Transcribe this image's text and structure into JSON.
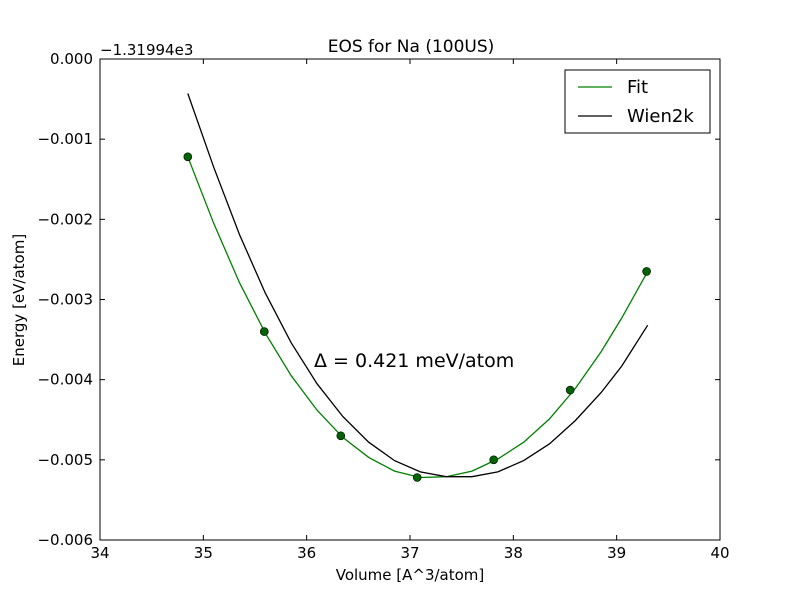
{
  "chart_data": {
    "type": "line",
    "title": "EOS for Na (100US)",
    "xlabel": "Volume [A^3/atom]",
    "ylabel": "Energy [eV/atom]",
    "y_offset_label": "−1.31994e3",
    "xlim": [
      34,
      40
    ],
    "ylim": [
      -0.006,
      0.0
    ],
    "xticks": [
      34,
      35,
      36,
      37,
      38,
      39,
      40
    ],
    "xtick_labels": [
      "34",
      "35",
      "36",
      "37",
      "38",
      "39",
      "40"
    ],
    "yticks": [
      0.0,
      -0.001,
      -0.002,
      -0.003,
      -0.004,
      -0.005,
      -0.006
    ],
    "ytick_labels": [
      "0.000",
      "−0.001",
      "−0.002",
      "−0.003",
      "−0.004",
      "−0.005",
      "−0.006"
    ],
    "legend_position": "top-right",
    "grid": false,
    "annotation": "Δ = 0.421 meV/atom",
    "series": [
      {
        "name": "Fit",
        "color": "#008000",
        "style": "line",
        "x": [
          34.85,
          35.1,
          35.35,
          35.6,
          35.85,
          36.1,
          36.35,
          36.6,
          36.85,
          37.1,
          37.35,
          37.6,
          37.85,
          38.1,
          38.35,
          38.6,
          38.85,
          39.05,
          39.3
        ],
        "y": [
          -0.00122,
          -0.00205,
          -0.00279,
          -0.00342,
          -0.00395,
          -0.00438,
          -0.00472,
          -0.00497,
          -0.00514,
          -0.00522,
          -0.00521,
          -0.00514,
          -0.00499,
          -0.00478,
          -0.00449,
          -0.00411,
          -0.00365,
          -0.00323,
          -0.00265
        ]
      },
      {
        "name": "",
        "color": "#006400",
        "style": "points",
        "x": [
          34.85,
          35.59,
          36.33,
          37.07,
          37.81,
          38.55,
          39.29
        ],
        "y": [
          -0.00122,
          -0.0034,
          -0.0047,
          -0.00522,
          -0.005,
          -0.00413,
          -0.00265
        ]
      },
      {
        "name": "Wien2k",
        "color": "#000000",
        "style": "line",
        "x": [
          34.85,
          35.1,
          35.35,
          35.6,
          35.85,
          36.1,
          36.35,
          36.6,
          36.85,
          37.1,
          37.35,
          37.6,
          37.85,
          38.1,
          38.35,
          38.6,
          38.85,
          39.05,
          39.3
        ],
        "y": [
          -0.00043,
          -0.00135,
          -0.00219,
          -0.00292,
          -0.00354,
          -0.00405,
          -0.00446,
          -0.00478,
          -0.00501,
          -0.00515,
          -0.00521,
          -0.00521,
          -0.00515,
          -0.00501,
          -0.0048,
          -0.00451,
          -0.00416,
          -0.00383,
          -0.00332
        ]
      }
    ]
  }
}
